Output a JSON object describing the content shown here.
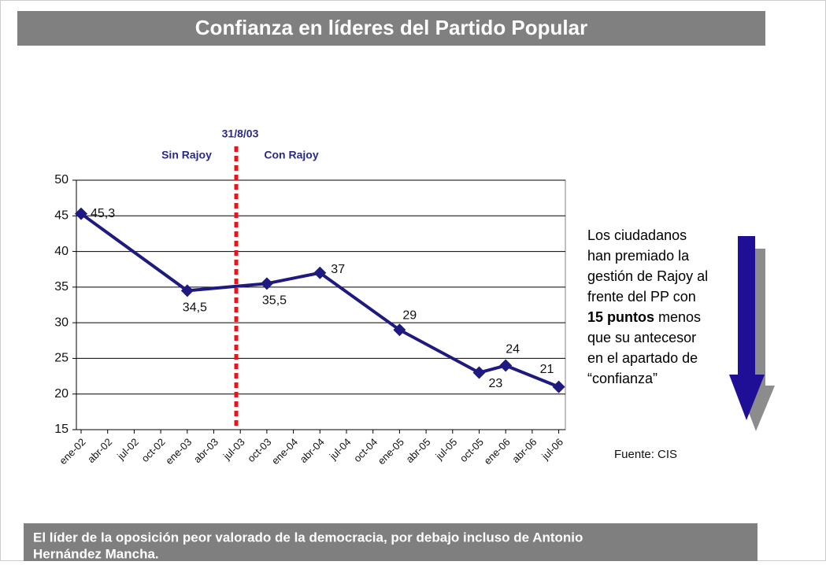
{
  "header": {
    "title": "Confianza en líderes del Partido Popular"
  },
  "chart_data": {
    "type": "line",
    "categories": [
      "ene-02",
      "abr-02",
      "jul-02",
      "oct-02",
      "ene-03",
      "abr-03",
      "jul-03",
      "oct-03",
      "ene-04",
      "abr-04",
      "jul-04",
      "oct-04",
      "ene-05",
      "abr-05",
      "jul-05",
      "oct-05",
      "ene-06",
      "abr-06",
      "jul-06"
    ],
    "x": [
      "ene-02",
      "ene-03",
      "oct-03",
      "abr-04",
      "ene-05",
      "oct-05",
      "ene-06",
      "jul-06"
    ],
    "series": [
      {
        "name": "Confianza",
        "color": "#1f1a80",
        "values": [
          45.3,
          34.5,
          35.5,
          37,
          29,
          23,
          24,
          21
        ],
        "value_labels": [
          "45,3",
          "34,5",
          "35,5",
          "37",
          "29",
          "23",
          "24",
          "21"
        ]
      }
    ],
    "ylim": [
      15,
      50
    ],
    "yticks": [
      15,
      20,
      25,
      30,
      35,
      40,
      45,
      50
    ],
    "grid": true,
    "annotations": {
      "date": "31/8/03",
      "before": "Sin Rajoy",
      "after": "Con Rajoy"
    }
  },
  "note": [
    [
      {
        "text": "Los ciudadanos"
      }
    ],
    [
      {
        "text": "han premiado la"
      }
    ],
    [
      {
        "text": "gestión de Rajoy al"
      }
    ],
    [
      {
        "text": "frente del PP con"
      }
    ],
    [
      {
        "text": "15 puntos",
        "bold": true
      },
      {
        "text": " menos"
      }
    ],
    [
      {
        "text": "que su antecesor"
      }
    ],
    [
      {
        "text": "en el apartado de"
      }
    ],
    [
      {
        "text": "“confianza”"
      }
    ]
  ],
  "source": "Fuente: CIS",
  "footer": {
    "lines": [
      "El líder de la oposición peor valorado de la democracia, por debajo incluso de Antonio",
      "Hernández Mancha."
    ]
  }
}
